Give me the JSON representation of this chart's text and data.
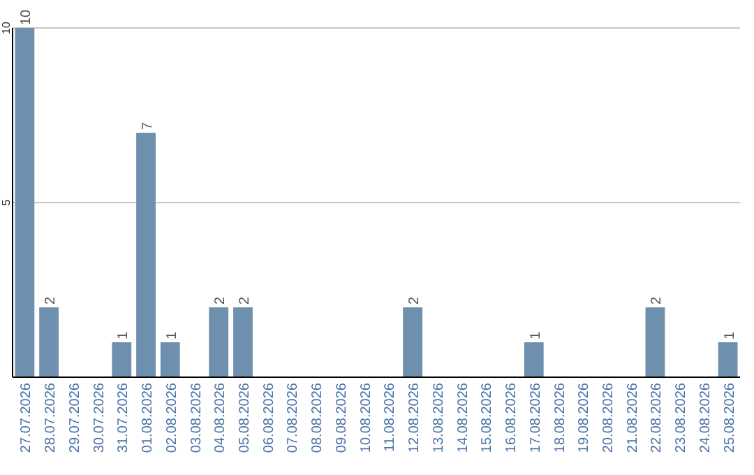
{
  "chart_data": {
    "type": "bar",
    "categories": [
      "27.07.2026",
      "28.07.2026",
      "29.07.2026",
      "30.07.2026",
      "31.07.2026",
      "01.08.2026",
      "02.08.2026",
      "03.08.2026",
      "04.08.2026",
      "05.08.2026",
      "06.08.2026",
      "07.08.2026",
      "08.08.2026",
      "09.08.2026",
      "10.08.2026",
      "11.08.2026",
      "12.08.2026",
      "13.08.2026",
      "14.08.2026",
      "15.08.2026",
      "16.08.2026",
      "17.08.2026",
      "18.08.2026",
      "19.08.2026",
      "20.08.2026",
      "21.08.2026",
      "22.08.2026",
      "23.08.2026",
      "24.08.2026",
      "25.08.2026"
    ],
    "values": [
      10,
      2,
      0,
      0,
      1,
      7,
      1,
      0,
      2,
      2,
      0,
      0,
      0,
      0,
      0,
      0,
      2,
      0,
      0,
      0,
      0,
      1,
      0,
      0,
      0,
      0,
      2,
      0,
      0,
      1
    ],
    "value_labels": [
      "10",
      "2",
      null,
      null,
      "1",
      "7",
      "1",
      null,
      "2",
      "2",
      null,
      null,
      null,
      null,
      null,
      null,
      "2",
      null,
      null,
      null,
      null,
      "1",
      null,
      null,
      null,
      null,
      "2",
      null,
      null,
      "1"
    ],
    "color": "#6e8fae",
    "ylim": [
      0,
      10
    ],
    "yticks": [
      {
        "value": 0,
        "label": null
      },
      5,
      10
    ],
    "grid": "y"
  }
}
